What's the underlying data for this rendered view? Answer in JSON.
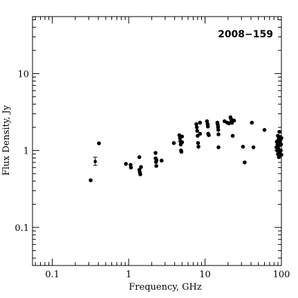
{
  "chart_data": {
    "type": "scatter",
    "title": "2008−159",
    "xlabel": "Frequency, GHz",
    "ylabel": "Flux Density, Jy",
    "x_scale": "log",
    "y_scale": "log",
    "xlim": [
      0.055,
      100
    ],
    "ylim": [
      0.032,
      55
    ],
    "x_tick_labels": [
      {
        "value": 0.1,
        "label": "0.1"
      },
      {
        "value": 1,
        "label": "1"
      },
      {
        "value": 10,
        "label": "10"
      },
      {
        "value": 100,
        "label": "100"
      }
    ],
    "y_tick_labels": [
      {
        "value": 0.1,
        "label": "0.1"
      },
      {
        "value": 1,
        "label": "1"
      },
      {
        "value": 10,
        "label": "10"
      }
    ],
    "grid": false,
    "legend": "none",
    "colors": {
      "marks": "#000000",
      "axes": "#000000",
      "background": "#ffffff"
    },
    "error_bar_points": [
      {
        "x": 0.365,
        "y": 0.72,
        "y_low": 0.64,
        "y_high": 0.82
      }
    ],
    "points": [
      {
        "x": 0.318,
        "y": 0.41
      },
      {
        "x": 0.408,
        "y": 1.24
      },
      {
        "x": 0.92,
        "y": 0.67
      },
      {
        "x": 1.06,
        "y": 0.65
      },
      {
        "x": 1.07,
        "y": 0.6
      },
      {
        "x": 1.38,
        "y": 0.82
      },
      {
        "x": 1.38,
        "y": 0.56
      },
      {
        "x": 1.4,
        "y": 0.52
      },
      {
        "x": 1.42,
        "y": 0.49
      },
      {
        "x": 1.45,
        "y": 0.61
      },
      {
        "x": 2.25,
        "y": 0.93
      },
      {
        "x": 2.25,
        "y": 0.79
      },
      {
        "x": 2.28,
        "y": 0.71
      },
      {
        "x": 2.3,
        "y": 0.63
      },
      {
        "x": 2.32,
        "y": 0.75
      },
      {
        "x": 2.7,
        "y": 0.74
      },
      {
        "x": 3.9,
        "y": 1.25
      },
      {
        "x": 4.6,
        "y": 1.58
      },
      {
        "x": 4.7,
        "y": 1.45
      },
      {
        "x": 4.75,
        "y": 1.32
      },
      {
        "x": 4.8,
        "y": 1.2
      },
      {
        "x": 4.85,
        "y": 1.0
      },
      {
        "x": 4.9,
        "y": 0.96
      },
      {
        "x": 5.0,
        "y": 1.52
      },
      {
        "x": 5.0,
        "y": 1.28
      },
      {
        "x": 7.7,
        "y": 2.2
      },
      {
        "x": 7.8,
        "y": 2.0
      },
      {
        "x": 7.9,
        "y": 1.8
      },
      {
        "x": 8.0,
        "y": 1.55
      },
      {
        "x": 8.1,
        "y": 1.25
      },
      {
        "x": 8.2,
        "y": 1.12
      },
      {
        "x": 8.6,
        "y": 2.3
      },
      {
        "x": 8.6,
        "y": 1.65
      },
      {
        "x": 10.6,
        "y": 2.4
      },
      {
        "x": 10.8,
        "y": 2.2
      },
      {
        "x": 10.9,
        "y": 2.05
      },
      {
        "x": 11.0,
        "y": 1.65
      },
      {
        "x": 11.2,
        "y": 1.58
      },
      {
        "x": 14.5,
        "y": 2.3
      },
      {
        "x": 14.7,
        "y": 2.15
      },
      {
        "x": 14.8,
        "y": 2.0
      },
      {
        "x": 14.9,
        "y": 1.85
      },
      {
        "x": 15.0,
        "y": 1.62
      },
      {
        "x": 15.0,
        "y": 1.1
      },
      {
        "x": 18.0,
        "y": 2.4
      },
      {
        "x": 19.5,
        "y": 2.3
      },
      {
        "x": 20.5,
        "y": 2.25
      },
      {
        "x": 21.5,
        "y": 2.7
      },
      {
        "x": 22.0,
        "y": 2.55
      },
      {
        "x": 22.2,
        "y": 2.4
      },
      {
        "x": 22.5,
        "y": 2.28
      },
      {
        "x": 23.0,
        "y": 1.55
      },
      {
        "x": 24.0,
        "y": 2.45
      },
      {
        "x": 31.4,
        "y": 1.12
      },
      {
        "x": 33.0,
        "y": 0.7
      },
      {
        "x": 41.0,
        "y": 2.3
      },
      {
        "x": 43.0,
        "y": 1.1
      },
      {
        "x": 60.0,
        "y": 1.85
      },
      {
        "x": 86.0,
        "y": 1.1
      },
      {
        "x": 87.0,
        "y": 1.3
      },
      {
        "x": 88.0,
        "y": 1.0
      },
      {
        "x": 89.0,
        "y": 1.2
      },
      {
        "x": 90.0,
        "y": 0.9
      },
      {
        "x": 90.0,
        "y": 1.55
      },
      {
        "x": 91.0,
        "y": 1.05
      },
      {
        "x": 92.0,
        "y": 1.4
      },
      {
        "x": 92.5,
        "y": 0.82
      },
      {
        "x": 93.0,
        "y": 1.15
      },
      {
        "x": 94.0,
        "y": 1.75
      },
      {
        "x": 95.0,
        "y": 0.95
      },
      {
        "x": 95.0,
        "y": 1.25
      },
      {
        "x": 96.0,
        "y": 1.5
      },
      {
        "x": 97.0,
        "y": 1.35
      },
      {
        "x": 98.0,
        "y": 1.0
      },
      {
        "x": 99.0,
        "y": 1.2
      },
      {
        "x": 100.0,
        "y": 1.45
      },
      {
        "x": 100.0,
        "y": 0.88
      }
    ]
  }
}
